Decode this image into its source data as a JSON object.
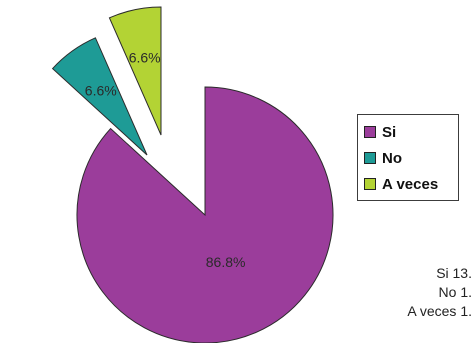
{
  "chart_data": {
    "type": "pie",
    "exploded": true,
    "slices": [
      {
        "name": "Si",
        "value": 86.8,
        "label": "86.8%",
        "color": "#9b3d9b"
      },
      {
        "name": "No",
        "value": 6.6,
        "label": "6.6%",
        "color": "#1e9b96"
      },
      {
        "name": "A veces",
        "value": 6.6,
        "label": "6.6%",
        "color": "#b3d334"
      }
    ],
    "legend": {
      "placement": "right",
      "items": [
        {
          "label": "Si",
          "color": "#9b3d9b"
        },
        {
          "label": "No",
          "color": "#1e9b96"
        },
        {
          "label": "A veces",
          "color": "#b3d334"
        }
      ]
    },
    "annotation": [
      "Si 13.",
      "No 1.",
      "A veces 1."
    ]
  }
}
